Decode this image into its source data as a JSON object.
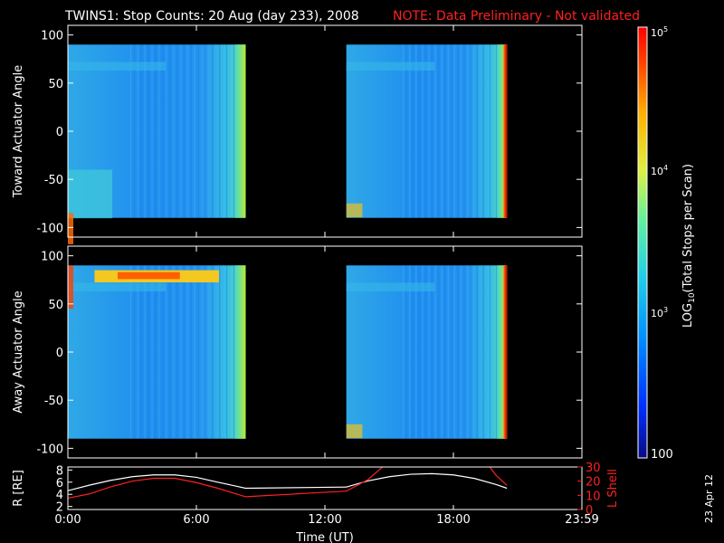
{
  "header": {
    "title": "TWINS1: Stop Counts: 20 Aug (day 233), 2008",
    "note": "NOTE: Data Preliminary - Not validated",
    "note_color": "#ff2020"
  },
  "side_date": "23 Apr 12",
  "colorbar": {
    "label": "LOG10(Total Stops per Scan)",
    "ticks": [
      "10^5",
      "10^4",
      "10^3",
      "100"
    ],
    "range": [
      100,
      100000
    ],
    "scale": "log",
    "colormap": [
      "#0a0a86",
      "#0030ff",
      "#0090ff",
      "#20d0e8",
      "#60f0a0",
      "#e0f040",
      "#ffb000",
      "#ff4000",
      "#ff0000"
    ]
  },
  "chart_data": [
    {
      "type": "heatmap",
      "title": "",
      "ylabel": "Toward Actuator Angle",
      "xlabel": "",
      "ylim": [
        -110,
        110
      ],
      "yticks": [
        -100,
        -50,
        0,
        50,
        100
      ],
      "xlim": [
        0,
        24
      ],
      "data_blocks": [
        {
          "x_start_hours": 0.0,
          "x_end_hours": 8.3,
          "y_range": [
            -90,
            90
          ],
          "typical_counts": 900
        },
        {
          "x_start_hours": 13.0,
          "x_end_hours": 20.5,
          "y_range": [
            -90,
            90
          ],
          "typical_counts": 800
        }
      ]
    },
    {
      "type": "heatmap",
      "title": "",
      "ylabel": "Away Actuator Angle",
      "xlabel": "",
      "ylim": [
        -110,
        110
      ],
      "yticks": [
        -100,
        -50,
        0,
        50,
        100
      ],
      "xlim": [
        0,
        24
      ],
      "data_blocks": [
        {
          "x_start_hours": 0.0,
          "x_end_hours": 8.3,
          "y_range": [
            -90,
            90
          ],
          "typical_counts": 900
        },
        {
          "x_start_hours": 13.0,
          "x_end_hours": 20.5,
          "y_range": [
            -90,
            90
          ],
          "typical_counts": 850
        }
      ]
    },
    {
      "type": "line",
      "xlabel": "Time (UT)",
      "xticks": [
        "0:00",
        "6:00",
        "12:00",
        "18:00",
        "23:59"
      ],
      "xlim": [
        0,
        24
      ],
      "left_axis": {
        "label": "R [RE]",
        "ylim": [
          1.5,
          8.5
        ],
        "ticks": [
          2,
          4,
          6,
          8
        ]
      },
      "right_axis": {
        "label": "L Shell",
        "ylim": [
          0,
          30
        ],
        "ticks": [
          0,
          10,
          20,
          30
        ],
        "color": "#ff2020"
      },
      "series": [
        {
          "axis": "left",
          "color": "#ffffff",
          "x": [
            0,
            1,
            2,
            3,
            4,
            5,
            6,
            7,
            8.3,
            13.0,
            14,
            15,
            16,
            17,
            18,
            19,
            20,
            20.5
          ],
          "y": [
            4.6,
            5.5,
            6.3,
            6.9,
            7.2,
            7.2,
            6.8,
            6.0,
            5.0,
            5.2,
            6.2,
            6.9,
            7.3,
            7.4,
            7.2,
            6.6,
            5.6,
            5.0
          ]
        },
        {
          "axis": "right",
          "color": "#ff2020",
          "x": [
            0,
            1,
            2,
            3,
            4,
            5,
            6,
            7,
            8.3,
            13.0,
            14,
            15.0,
            19.5,
            20,
            20.5
          ],
          "y": [
            8,
            11,
            16,
            20,
            22,
            22,
            19,
            15,
            9,
            13,
            21,
            34,
            34,
            24,
            17
          ]
        }
      ]
    }
  ]
}
